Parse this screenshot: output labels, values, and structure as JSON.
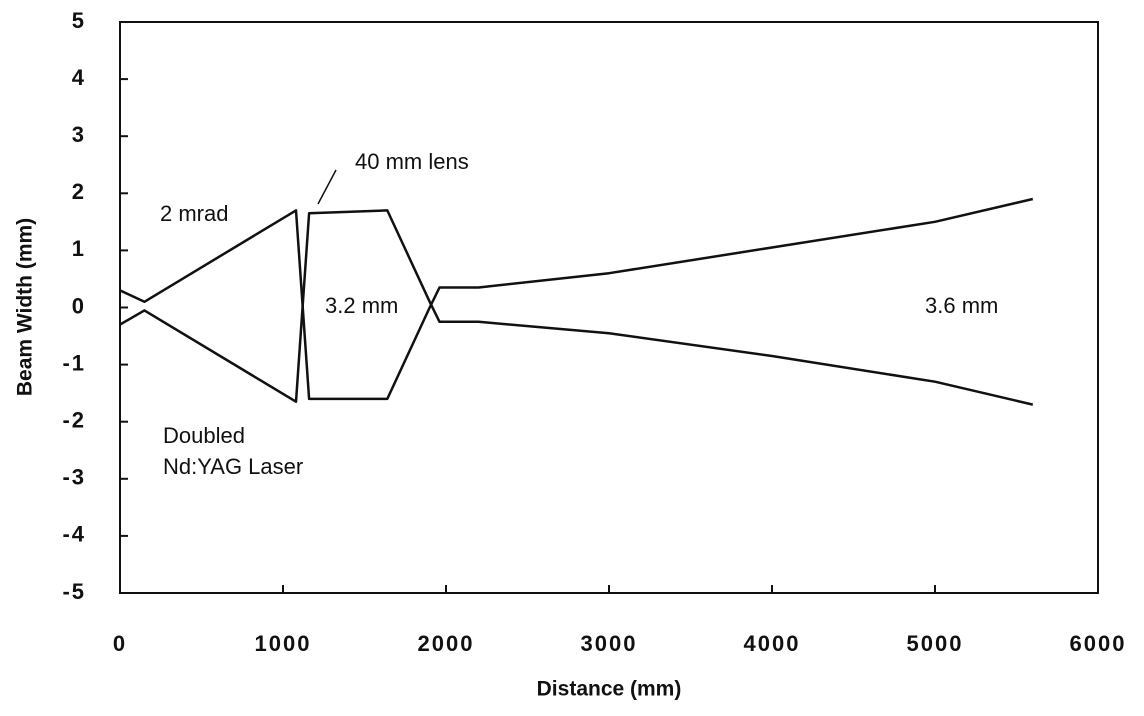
{
  "chart_data": {
    "type": "line",
    "xlabel": "Distance (mm)",
    "ylabel": "Beam Width (mm)",
    "x": [
      0,
      150,
      1080,
      1160,
      1640,
      1900,
      1960,
      2200,
      3000,
      4000,
      5000,
      5600
    ],
    "series": [
      {
        "color": "#111111",
        "values": [
          0.3,
          0.1,
          1.7,
          -1.6,
          -1.6,
          0,
          0.35,
          0.35,
          0.6,
          1.05,
          1.5,
          1.9
        ]
      },
      {
        "color": "#111111",
        "values": [
          -0.3,
          -0.05,
          -1.65,
          1.65,
          1.7,
          0.1,
          -0.25,
          -0.25,
          -0.45,
          -0.85,
          -1.3,
          -1.7
        ]
      }
    ],
    "xlim": [
      0,
      6000
    ],
    "ylim": [
      -5,
      5
    ],
    "xticks": [
      0,
      1000,
      2000,
      3000,
      4000,
      5000,
      6000
    ],
    "yticks": [
      -5,
      -4,
      -3,
      -2,
      -1,
      0,
      1,
      2,
      3,
      4,
      5
    ],
    "grid": false,
    "annotations": [
      "2 mrad",
      "40 mm lens",
      "3.2 mm",
      "3.6 mm",
      "Doubled",
      "Nd:YAG Laser"
    ]
  }
}
